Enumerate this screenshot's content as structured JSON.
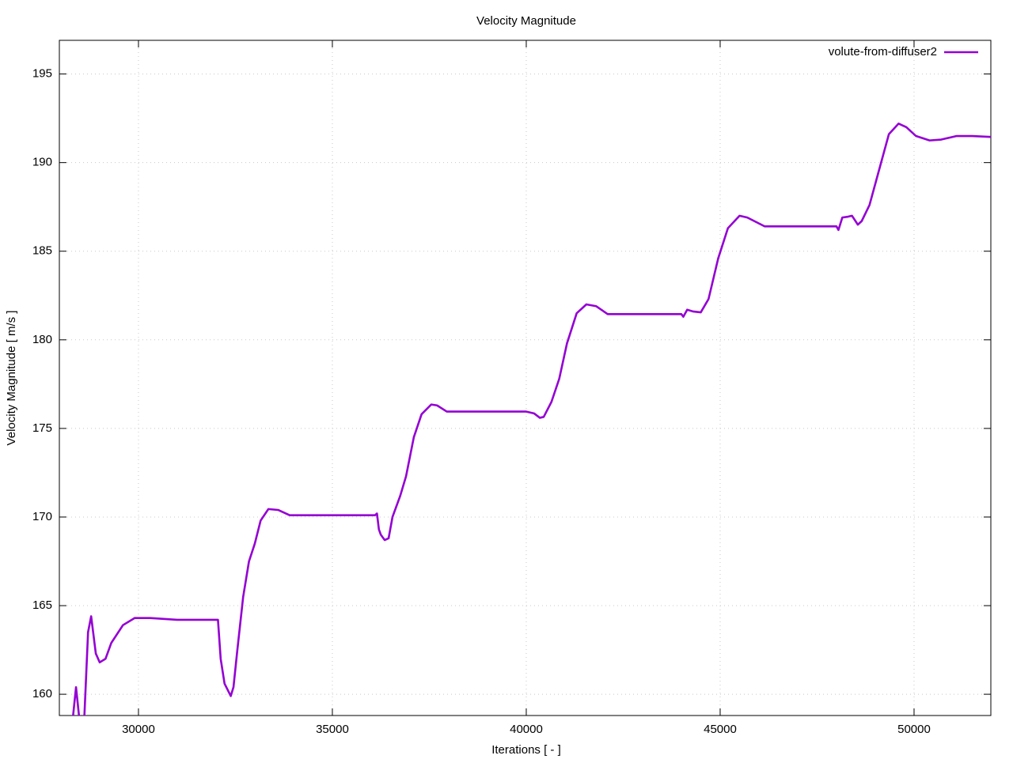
{
  "chart_data": {
    "type": "line",
    "title": "Velocity Magnitude",
    "x_label": "Iterations [ - ]",
    "y_label": "Velocity Magnitude [ m/s ]",
    "xlim": [
      27960,
      51980
    ],
    "ylim": [
      158.8,
      196.9
    ],
    "xticks": [
      30000,
      35000,
      40000,
      45000,
      50000
    ],
    "yticks": [
      160,
      165,
      170,
      175,
      180,
      185,
      190,
      195
    ],
    "grid": true,
    "legend": "top-right",
    "x": [
      28300,
      28390,
      28480,
      28600,
      28700,
      28780,
      28900,
      29000,
      29150,
      29300,
      29600,
      29900,
      30300,
      31000,
      32000,
      32050,
      32120,
      32220,
      32380,
      32450,
      32550,
      32700,
      32850,
      33000,
      33150,
      33350,
      33600,
      33900,
      35000,
      36100,
      36150,
      36200,
      36250,
      36350,
      36450,
      36550,
      36750,
      36900,
      37100,
      37300,
      37550,
      37700,
      37950,
      40000,
      40200,
      40350,
      40450,
      40650,
      40850,
      41050,
      41300,
      41550,
      41800,
      42100,
      44000,
      44050,
      44150,
      44300,
      44500,
      44700,
      44950,
      45200,
      45500,
      45700,
      46150,
      48000,
      48050,
      48150,
      48300,
      48400,
      48550,
      48650,
      48850,
      49100,
      49350,
      49600,
      49800,
      50050,
      50400,
      50700,
      51100,
      51500,
      51980
    ],
    "series": [
      {
        "name": "volute-from-diffuser2",
        "color": "#9400d3",
        "values": [
          158.5,
          160.4,
          158.5,
          158.5,
          163.5,
          164.4,
          162.3,
          161.8,
          162.0,
          162.9,
          163.9,
          164.3,
          164.3,
          164.2,
          164.2,
          164.2,
          162.0,
          160.6,
          159.9,
          160.4,
          162.5,
          165.5,
          167.5,
          168.5,
          169.8,
          170.45,
          170.4,
          170.1,
          170.1,
          170.1,
          170.2,
          169.3,
          169.0,
          168.7,
          168.8,
          170.0,
          171.2,
          172.3,
          174.5,
          175.8,
          176.35,
          176.3,
          175.95,
          175.95,
          175.85,
          175.6,
          175.65,
          176.5,
          177.8,
          179.8,
          181.5,
          182.0,
          181.9,
          181.45,
          181.45,
          181.3,
          181.7,
          181.6,
          181.55,
          182.3,
          184.6,
          186.3,
          187.0,
          186.9,
          186.4,
          186.4,
          186.2,
          186.9,
          186.95,
          187.0,
          186.5,
          186.7,
          187.6,
          189.6,
          191.6,
          192.2,
          192.0,
          191.5,
          191.25,
          191.3,
          191.5,
          191.5,
          191.45
        ]
      }
    ]
  }
}
